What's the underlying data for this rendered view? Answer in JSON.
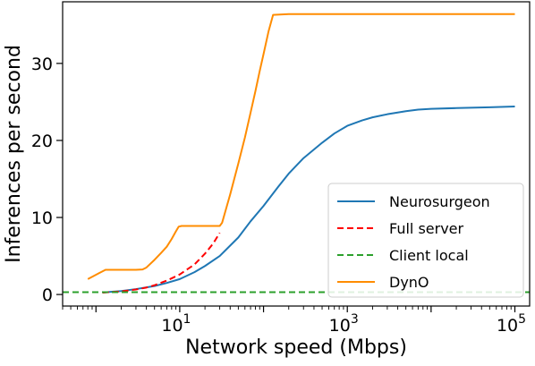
{
  "chart_data": {
    "type": "line",
    "xlabel": "Network speed (Mbps)",
    "ylabel": "Inferences per second",
    "xscale": "log",
    "xlim": [
      0.4,
      150000
    ],
    "ylim": [
      -1.5,
      38
    ],
    "x_ticks": [
      {
        "value": 10,
        "base": "10",
        "exp": "1"
      },
      {
        "value": 1000,
        "base": "10",
        "exp": "3"
      },
      {
        "value": 100000,
        "base": "10",
        "exp": "5"
      }
    ],
    "y_ticks": [
      0,
      10,
      20,
      30
    ],
    "legend_position": "lower-right",
    "grid": false,
    "series": [
      {
        "name": "Neurosurgeon",
        "color": "#1f77b4",
        "dash": "solid",
        "points": [
          [
            1.2,
            0.25
          ],
          [
            1.5,
            0.35
          ],
          [
            2,
            0.45
          ],
          [
            3,
            0.7
          ],
          [
            5,
            1.1
          ],
          [
            7,
            1.5
          ],
          [
            10,
            2.0
          ],
          [
            15,
            2.9
          ],
          [
            20,
            3.7
          ],
          [
            30,
            5.0
          ],
          [
            50,
            7.4
          ],
          [
            70,
            9.5
          ],
          [
            100,
            11.5
          ],
          [
            150,
            14.0
          ],
          [
            200,
            15.7
          ],
          [
            300,
            17.7
          ],
          [
            500,
            19.7
          ],
          [
            700,
            20.9
          ],
          [
            1000,
            21.9
          ],
          [
            1500,
            22.6
          ],
          [
            2000,
            23.0
          ],
          [
            3000,
            23.4
          ],
          [
            5000,
            23.8
          ],
          [
            7000,
            24.0
          ],
          [
            10000,
            24.1
          ],
          [
            20000,
            24.2
          ],
          [
            50000,
            24.3
          ],
          [
            100000,
            24.4
          ]
        ]
      },
      {
        "name": "Full server",
        "color": "#ff0000",
        "dash": "dashed",
        "points": [
          [
            1.2,
            0.25
          ],
          [
            2,
            0.4
          ],
          [
            3,
            0.65
          ],
          [
            4,
            0.9
          ],
          [
            5,
            1.2
          ],
          [
            7,
            1.8
          ],
          [
            10,
            2.6
          ],
          [
            15,
            3.9
          ],
          [
            20,
            5.3
          ],
          [
            25,
            6.6
          ],
          [
            30,
            8.0
          ]
        ]
      },
      {
        "name": "Client local",
        "color": "#2ca02c",
        "dash": "dashed",
        "points": [
          [
            0.4,
            0.3
          ],
          [
            150000,
            0.3
          ]
        ]
      },
      {
        "name": "DynO",
        "color": "#ff8c00",
        "dash": "solid",
        "points": [
          [
            0.8,
            2.0
          ],
          [
            1.1,
            2.8
          ],
          [
            1.3,
            3.2
          ],
          [
            2,
            3.2
          ],
          [
            3,
            3.2
          ],
          [
            3.6,
            3.25
          ],
          [
            4,
            3.5
          ],
          [
            5,
            4.5
          ],
          [
            6,
            5.4
          ],
          [
            7,
            6.2
          ],
          [
            8,
            7.2
          ],
          [
            9,
            8.2
          ],
          [
            9.7,
            8.8
          ],
          [
            10.5,
            8.9
          ],
          [
            15,
            8.9
          ],
          [
            20,
            8.9
          ],
          [
            30,
            8.9
          ],
          [
            32,
            9.3
          ],
          [
            40,
            13.0
          ],
          [
            50,
            17.0
          ],
          [
            60,
            20.4
          ],
          [
            70,
            23.6
          ],
          [
            80,
            26.4
          ],
          [
            90,
            29.0
          ],
          [
            100,
            31.2
          ],
          [
            115,
            34.2
          ],
          [
            130,
            36.3
          ],
          [
            200,
            36.4
          ],
          [
            1000,
            36.4
          ],
          [
            10000,
            36.4
          ],
          [
            100000,
            36.4
          ]
        ]
      }
    ]
  }
}
